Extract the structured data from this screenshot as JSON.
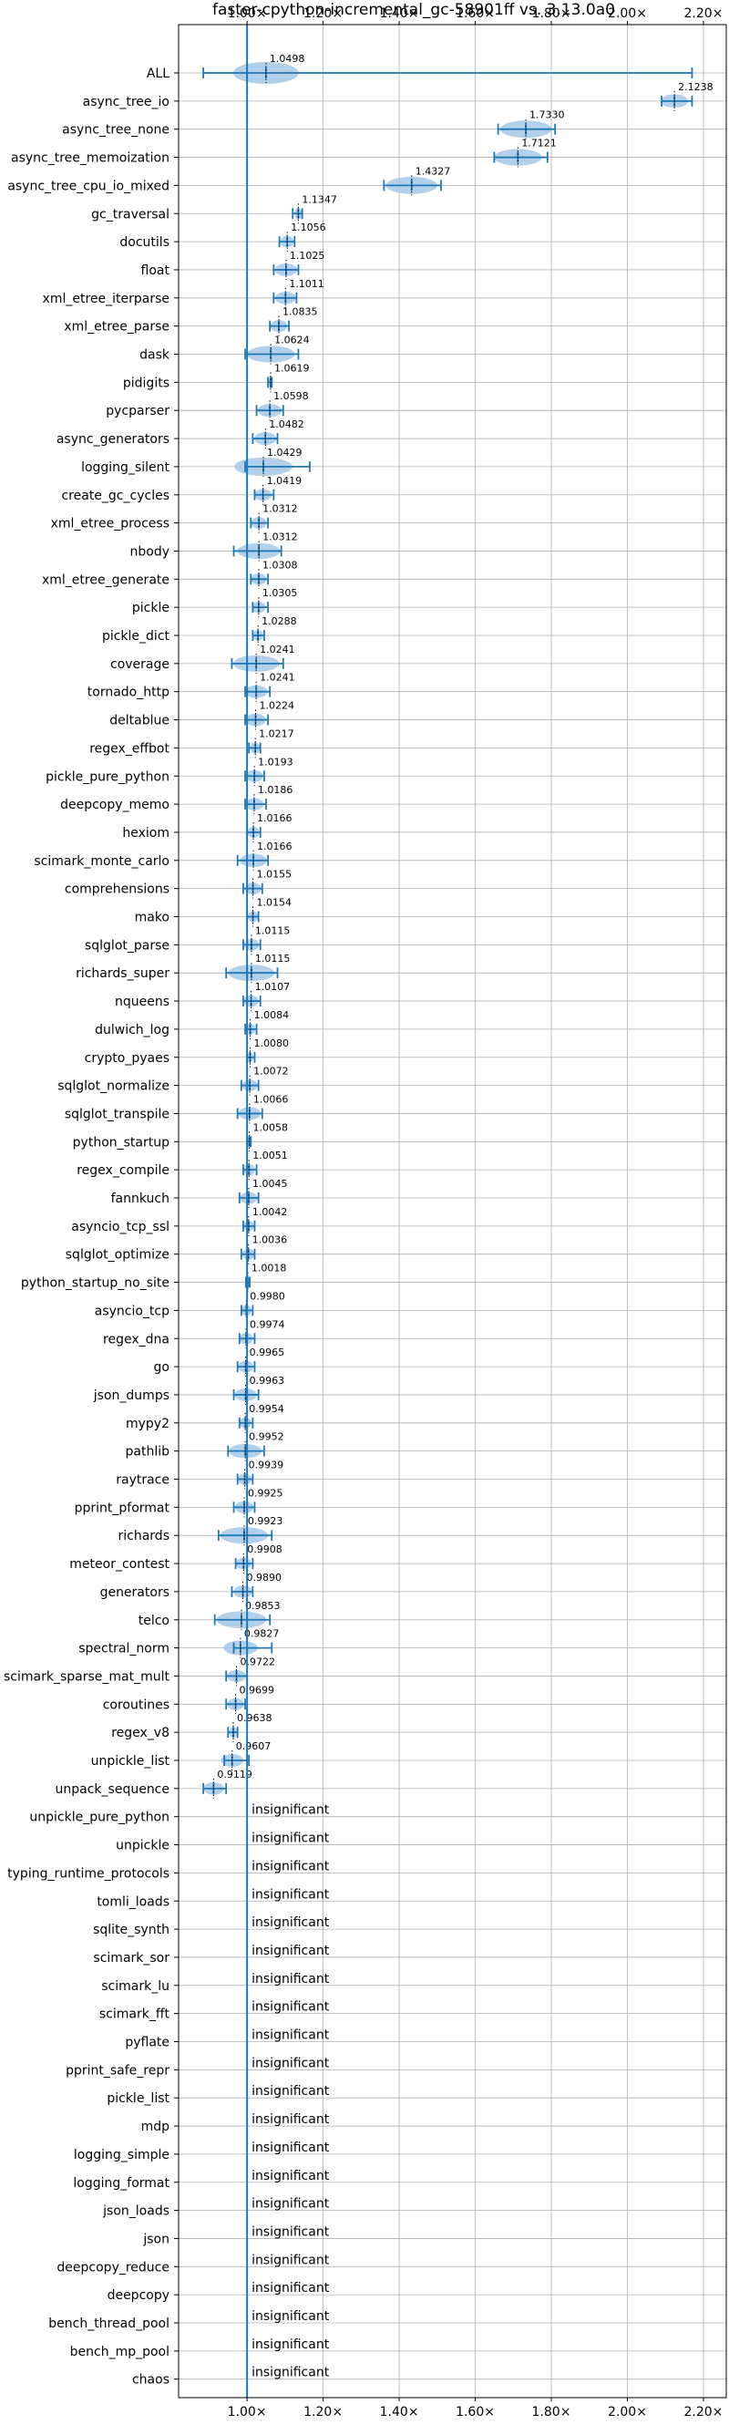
{
  "chart_data": {
    "type": "violin",
    "title": "faster-cpython-incremental_gc-58901ff vs. 3.13.0a0",
    "xlim": [
      0.82,
      2.26
    ],
    "xticks": [
      1.0,
      1.2,
      1.4,
      1.6,
      1.8,
      2.0,
      2.2
    ],
    "xtick_labels": [
      "1.00×",
      "1.20×",
      "1.40×",
      "1.60×",
      "1.80×",
      "2.00×",
      "2.20×"
    ],
    "reference_line": 1.0,
    "grid": true,
    "color": "#1f77b4",
    "violin_fill": "#a6c8e8",
    "insignificant_text": "insignificant",
    "benchmarks": [
      {
        "name": "ALL",
        "value": 1.0498,
        "label": "1.0498",
        "low": 0.885,
        "high": 2.17
      },
      {
        "name": "async_tree_io",
        "value": 2.1238,
        "label": "2.1238",
        "low": 2.09,
        "high": 2.17
      },
      {
        "name": "async_tree_none",
        "value": 1.733,
        "label": "1.7330",
        "low": 1.66,
        "high": 1.81
      },
      {
        "name": "async_tree_memoization",
        "value": 1.7121,
        "label": "1.7121",
        "low": 1.65,
        "high": 1.79
      },
      {
        "name": "async_tree_cpu_io_mixed",
        "value": 1.4327,
        "label": "1.4327",
        "low": 1.36,
        "high": 1.51
      },
      {
        "name": "gc_traversal",
        "value": 1.1347,
        "label": "1.1347",
        "low": 1.12,
        "high": 1.145
      },
      {
        "name": "docutils",
        "value": 1.1056,
        "label": "1.1056",
        "low": 1.085,
        "high": 1.125
      },
      {
        "name": "float",
        "value": 1.1025,
        "label": "1.1025",
        "low": 1.07,
        "high": 1.135
      },
      {
        "name": "xml_etree_iterparse",
        "value": 1.1011,
        "label": "1.1011",
        "low": 1.07,
        "high": 1.13
      },
      {
        "name": "xml_etree_parse",
        "value": 1.0835,
        "label": "1.0835",
        "low": 1.06,
        "high": 1.11
      },
      {
        "name": "dask",
        "value": 1.0624,
        "label": "1.0624",
        "low": 0.995,
        "high": 1.135
      },
      {
        "name": "pidigits",
        "value": 1.0619,
        "label": "1.0619",
        "low": 1.055,
        "high": 1.065
      },
      {
        "name": "pycparser",
        "value": 1.0598,
        "label": "1.0598",
        "low": 1.025,
        "high": 1.095
      },
      {
        "name": "async_generators",
        "value": 1.0482,
        "label": "1.0482",
        "low": 1.015,
        "high": 1.08
      },
      {
        "name": "logging_silent",
        "value": 1.0429,
        "label": "1.0429",
        "low": 0.995,
        "high": 1.165
      },
      {
        "name": "create_gc_cycles",
        "value": 1.0419,
        "label": "1.0419",
        "low": 1.02,
        "high": 1.07
      },
      {
        "name": "xml_etree_process",
        "value": 1.0312,
        "label": "1.0312",
        "low": 1.01,
        "high": 1.055
      },
      {
        "name": "nbody",
        "value": 1.0312,
        "label": "1.0312",
        "low": 0.965,
        "high": 1.09
      },
      {
        "name": "xml_etree_generate",
        "value": 1.0308,
        "label": "1.0308",
        "low": 1.01,
        "high": 1.055
      },
      {
        "name": "pickle",
        "value": 1.0305,
        "label": "1.0305",
        "low": 1.015,
        "high": 1.055
      },
      {
        "name": "pickle_dict",
        "value": 1.0288,
        "label": "1.0288",
        "low": 1.015,
        "high": 1.045
      },
      {
        "name": "coverage",
        "value": 1.0241,
        "label": "1.0241",
        "low": 0.96,
        "high": 1.095
      },
      {
        "name": "tornado_http",
        "value": 1.0241,
        "label": "1.0241",
        "low": 0.995,
        "high": 1.06
      },
      {
        "name": "deltablue",
        "value": 1.0224,
        "label": "1.0224",
        "low": 0.995,
        "high": 1.055
      },
      {
        "name": "regex_effbot",
        "value": 1.0217,
        "label": "1.0217",
        "low": 1.005,
        "high": 1.035
      },
      {
        "name": "pickle_pure_python",
        "value": 1.0193,
        "label": "1.0193",
        "low": 0.995,
        "high": 1.045
      },
      {
        "name": "deepcopy_memo",
        "value": 1.0186,
        "label": "1.0186",
        "low": 0.995,
        "high": 1.05
      },
      {
        "name": "hexiom",
        "value": 1.0166,
        "label": "1.0166",
        "low": 1.0,
        "high": 1.035
      },
      {
        "name": "scimark_monte_carlo",
        "value": 1.0166,
        "label": "1.0166",
        "low": 0.975,
        "high": 1.055
      },
      {
        "name": "comprehensions",
        "value": 1.0155,
        "label": "1.0155",
        "low": 0.99,
        "high": 1.04
      },
      {
        "name": "mako",
        "value": 1.0154,
        "label": "1.0154",
        "low": 1.0,
        "high": 1.03
      },
      {
        "name": "sqlglot_parse",
        "value": 1.0115,
        "label": "1.0115",
        "low": 0.99,
        "high": 1.035
      },
      {
        "name": "richards_super",
        "value": 1.0115,
        "label": "1.0115",
        "low": 0.945,
        "high": 1.08
      },
      {
        "name": "nqueens",
        "value": 1.0107,
        "label": "1.0107",
        "low": 0.99,
        "high": 1.035
      },
      {
        "name": "dulwich_log",
        "value": 1.0084,
        "label": "1.0084",
        "low": 0.995,
        "high": 1.025
      },
      {
        "name": "crypto_pyaes",
        "value": 1.008,
        "label": "1.0080",
        "low": 1.0,
        "high": 1.02
      },
      {
        "name": "sqlglot_normalize",
        "value": 1.0072,
        "label": "1.0072",
        "low": 0.985,
        "high": 1.03
      },
      {
        "name": "sqlglot_transpile",
        "value": 1.0066,
        "label": "1.0066",
        "low": 0.975,
        "high": 1.04
      },
      {
        "name": "python_startup",
        "value": 1.0058,
        "label": "1.0058",
        "low": 1.0,
        "high": 1.01
      },
      {
        "name": "regex_compile",
        "value": 1.0051,
        "label": "1.0051",
        "low": 0.99,
        "high": 1.025
      },
      {
        "name": "fannkuch",
        "value": 1.0045,
        "label": "1.0045",
        "low": 0.98,
        "high": 1.03
      },
      {
        "name": "asyncio_tcp_ssl",
        "value": 1.0042,
        "label": "1.0042",
        "low": 0.99,
        "high": 1.02
      },
      {
        "name": "sqlglot_optimize",
        "value": 1.0036,
        "label": "1.0036",
        "low": 0.985,
        "high": 1.02
      },
      {
        "name": "python_startup_no_site",
        "value": 1.0018,
        "label": "1.0018",
        "low": 0.997,
        "high": 1.007
      },
      {
        "name": "asyncio_tcp",
        "value": 0.998,
        "label": "0.9980",
        "low": 0.985,
        "high": 1.015
      },
      {
        "name": "regex_dna",
        "value": 0.9974,
        "label": "0.9974",
        "low": 0.98,
        "high": 1.02
      },
      {
        "name": "go",
        "value": 0.9965,
        "label": "0.9965",
        "low": 0.975,
        "high": 1.02
      },
      {
        "name": "json_dumps",
        "value": 0.9963,
        "label": "0.9963",
        "low": 0.965,
        "high": 1.03
      },
      {
        "name": "mypy2",
        "value": 0.9954,
        "label": "0.9954",
        "low": 0.98,
        "high": 1.015
      },
      {
        "name": "pathlib",
        "value": 0.9952,
        "label": "0.9952",
        "low": 0.95,
        "high": 1.045
      },
      {
        "name": "raytrace",
        "value": 0.9939,
        "label": "0.9939",
        "low": 0.975,
        "high": 1.015
      },
      {
        "name": "pprint_pformat",
        "value": 0.9925,
        "label": "0.9925",
        "low": 0.965,
        "high": 1.02
      },
      {
        "name": "richards",
        "value": 0.9923,
        "label": "0.9923",
        "low": 0.925,
        "high": 1.065
      },
      {
        "name": "meteor_contest",
        "value": 0.9908,
        "label": "0.9908",
        "low": 0.97,
        "high": 1.015
      },
      {
        "name": "generators",
        "value": 0.989,
        "label": "0.9890",
        "low": 0.96,
        "high": 1.015
      },
      {
        "name": "telco",
        "value": 0.9853,
        "label": "0.9853",
        "low": 0.915,
        "high": 1.06
      },
      {
        "name": "spectral_norm",
        "value": 0.9827,
        "label": "0.9827",
        "low": 0.965,
        "high": 1.065
      },
      {
        "name": "scimark_sparse_mat_mult",
        "value": 0.9722,
        "label": "0.9722",
        "low": 0.945,
        "high": 1.0
      },
      {
        "name": "coroutines",
        "value": 0.9699,
        "label": "0.9699",
        "low": 0.945,
        "high": 0.995
      },
      {
        "name": "regex_v8",
        "value": 0.9638,
        "label": "0.9638",
        "low": 0.95,
        "high": 0.975
      },
      {
        "name": "unpickle_list",
        "value": 0.9607,
        "label": "0.9607",
        "low": 0.94,
        "high": 1.005
      },
      {
        "name": "unpack_sequence",
        "value": 0.9119,
        "label": "0.9119",
        "low": 0.885,
        "high": 0.945
      },
      {
        "name": "unpickle_pure_python",
        "insignificant": true
      },
      {
        "name": "unpickle",
        "insignificant": true
      },
      {
        "name": "typing_runtime_protocols",
        "insignificant": true
      },
      {
        "name": "tomli_loads",
        "insignificant": true
      },
      {
        "name": "sqlite_synth",
        "insignificant": true
      },
      {
        "name": "scimark_sor",
        "insignificant": true
      },
      {
        "name": "scimark_lu",
        "insignificant": true
      },
      {
        "name": "scimark_fft",
        "insignificant": true
      },
      {
        "name": "pyflate",
        "insignificant": true
      },
      {
        "name": "pprint_safe_repr",
        "insignificant": true
      },
      {
        "name": "pickle_list",
        "insignificant": true
      },
      {
        "name": "mdp",
        "insignificant": true
      },
      {
        "name": "logging_simple",
        "insignificant": true
      },
      {
        "name": "logging_format",
        "insignificant": true
      },
      {
        "name": "json_loads",
        "insignificant": true
      },
      {
        "name": "json",
        "insignificant": true
      },
      {
        "name": "deepcopy_reduce",
        "insignificant": true
      },
      {
        "name": "deepcopy",
        "insignificant": true
      },
      {
        "name": "bench_thread_pool",
        "insignificant": true
      },
      {
        "name": "bench_mp_pool",
        "insignificant": true
      },
      {
        "name": "chaos",
        "insignificant": true
      }
    ]
  }
}
